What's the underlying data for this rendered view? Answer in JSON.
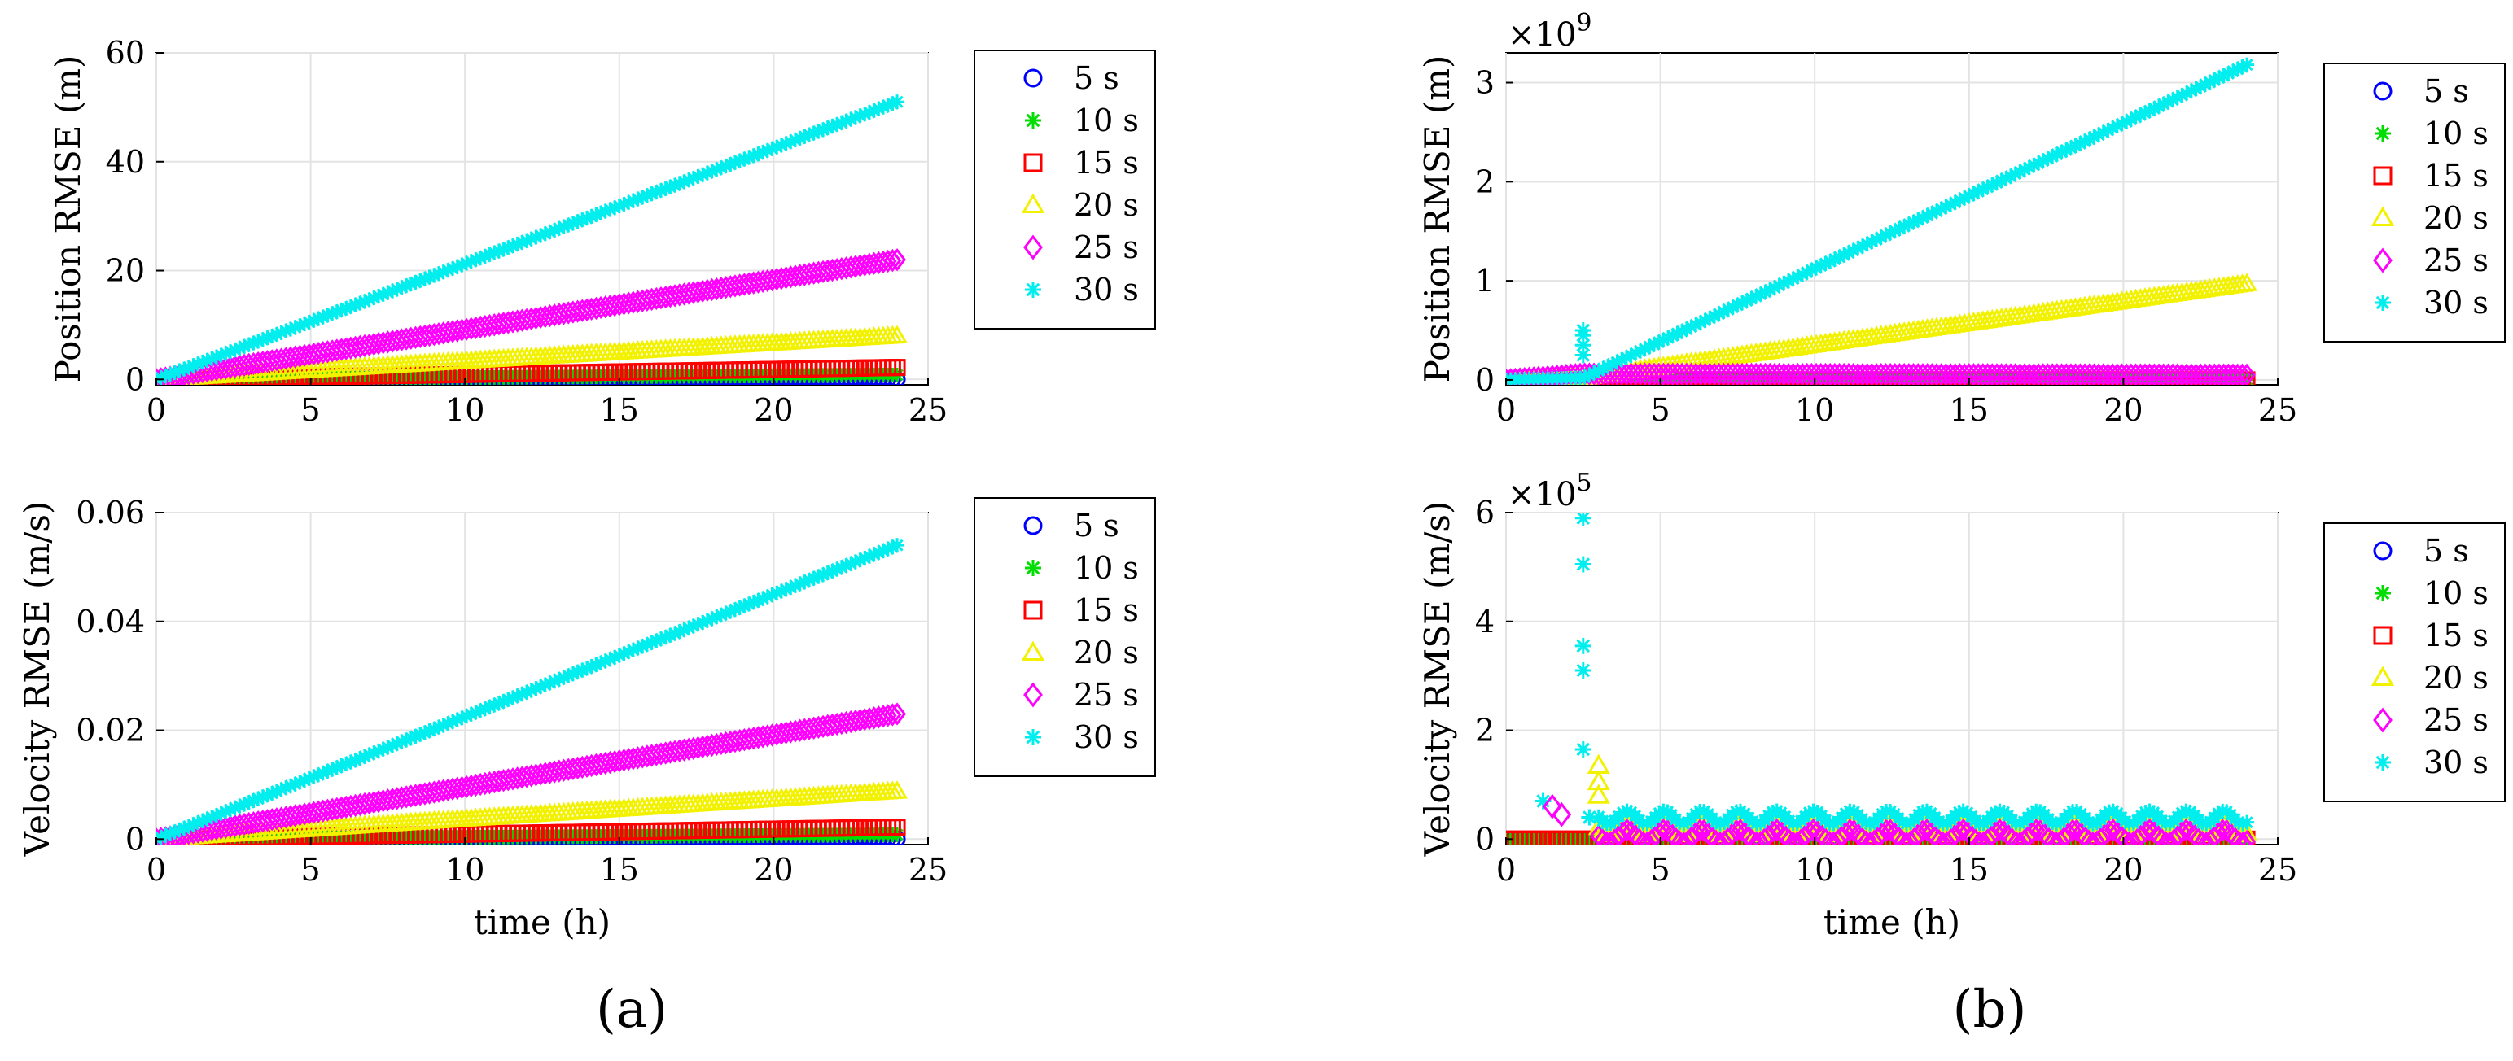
{
  "colors": {
    "s5": "#0000ff",
    "s10": "#00dd00",
    "s15": "#ff0000",
    "s20": "#f2f200",
    "s25": "#ff00ff",
    "s30": "#00eeee"
  },
  "legend": [
    "5 s",
    "10 s",
    "15 s",
    "20 s",
    "25 s",
    "30 s"
  ],
  "markers": [
    "circle",
    "star",
    "square",
    "triangle",
    "diamond",
    "star"
  ],
  "panel_labels": {
    "a": "(a)",
    "b": "(b)"
  },
  "chart_data": [
    {
      "id": "a_pos",
      "type": "scatter",
      "ylabel": "Position RMSE (m)",
      "xlabel": "",
      "xlim": [
        0,
        25
      ],
      "ylim": [
        -1,
        60
      ],
      "xticks": [
        "0",
        "5",
        "10",
        "15",
        "20",
        "25"
      ],
      "xtick_values": [
        0,
        5,
        10,
        15,
        20,
        25
      ],
      "yticks": [
        "0",
        "20",
        "40",
        "60"
      ],
      "ytick_values": [
        0,
        20,
        40,
        60
      ],
      "exponent": "",
      "series": [
        {
          "name": "5 s",
          "x": [
            0,
            24
          ],
          "y": [
            0,
            0
          ]
        },
        {
          "name": "10 s",
          "x": [
            0,
            24
          ],
          "y": [
            0,
            0.8
          ]
        },
        {
          "name": "15 s",
          "x": [
            0,
            24
          ],
          "y": [
            0,
            2.2
          ]
        },
        {
          "name": "20 s",
          "x": [
            0,
            24
          ],
          "y": [
            0,
            8
          ]
        },
        {
          "name": "25 s",
          "x": [
            0,
            24
          ],
          "y": [
            0,
            22
          ]
        },
        {
          "name": "30 s",
          "x": [
            0,
            24
          ],
          "y": [
            0,
            51
          ]
        }
      ]
    },
    {
      "id": "a_vel",
      "type": "scatter",
      "ylabel": "Velocity RMSE (m/s)",
      "xlabel": "time (h)",
      "xlim": [
        0,
        25
      ],
      "ylim": [
        -0.001,
        0.06
      ],
      "xticks": [
        "0",
        "5",
        "10",
        "15",
        "20",
        "25"
      ],
      "xtick_values": [
        0,
        5,
        10,
        15,
        20,
        25
      ],
      "yticks": [
        "0",
        "0.02",
        "0.04",
        "0.06"
      ],
      "ytick_values": [
        0,
        0.02,
        0.04,
        0.06
      ],
      "exponent": "",
      "series": [
        {
          "name": "5 s",
          "x": [
            0,
            24
          ],
          "y": [
            0,
            0
          ]
        },
        {
          "name": "10 s",
          "x": [
            0,
            24
          ],
          "y": [
            0,
            0.0008
          ]
        },
        {
          "name": "15 s",
          "x": [
            0,
            24
          ],
          "y": [
            0,
            0.0022
          ]
        },
        {
          "name": "20 s",
          "x": [
            0,
            24
          ],
          "y": [
            0,
            0.0088
          ]
        },
        {
          "name": "25 s",
          "x": [
            0,
            24
          ],
          "y": [
            0,
            0.023
          ]
        },
        {
          "name": "30 s",
          "x": [
            0,
            24
          ],
          "y": [
            0,
            0.054
          ]
        }
      ]
    },
    {
      "id": "b_pos",
      "type": "scatter",
      "ylabel": "Position RMSE (m)",
      "xlabel": "",
      "xlim": [
        0,
        25
      ],
      "ylim": [
        -0.05,
        3.3
      ],
      "xticks": [
        "0",
        "5",
        "10",
        "15",
        "20",
        "25"
      ],
      "xtick_values": [
        0,
        5,
        10,
        15,
        20,
        25
      ],
      "yticks": [
        "0",
        "1",
        "2",
        "3"
      ],
      "ytick_values": [
        0,
        1,
        2,
        3
      ],
      "exponent": "9",
      "series": [
        {
          "name": "5 s",
          "x": [
            0,
            24
          ],
          "y": [
            0,
            0
          ]
        },
        {
          "name": "10 s",
          "x": [
            0,
            24
          ],
          "y": [
            0,
            0
          ]
        },
        {
          "name": "15 s",
          "x": [
            0,
            24
          ],
          "y": [
            0,
            0
          ]
        },
        {
          "name": "20 s",
          "x": [
            0,
            2.5,
            24
          ],
          "y": [
            0,
            0.02,
            0.97
          ]
        },
        {
          "name": "25 s",
          "x": [
            0,
            2.5,
            24
          ],
          "y": [
            0,
            0.06,
            0.05
          ]
        },
        {
          "name": "30 s",
          "x": [
            0,
            2.5,
            24
          ],
          "y": [
            0,
            0.02,
            3.18
          ]
        }
      ],
      "scatter_points": [
        {
          "name": "30 s",
          "x": [
            2.5,
            2.5,
            2.5,
            2.5
          ],
          "y": [
            0.5,
            0.45,
            0.35,
            0.25
          ]
        }
      ]
    },
    {
      "id": "b_vel",
      "type": "scatter",
      "ylabel": "Velocity RMSE (m/s)",
      "xlabel": "time (h)",
      "xlim": [
        0,
        25
      ],
      "ylim": [
        -0.1,
        6
      ],
      "xticks": [
        "0",
        "5",
        "10",
        "15",
        "20",
        "25"
      ],
      "xtick_values": [
        0,
        5,
        10,
        15,
        20,
        25
      ],
      "yticks": [
        "0",
        "2",
        "4",
        "6"
      ],
      "ytick_values": [
        0,
        2,
        4,
        6
      ],
      "exponent": "5",
      "series": [
        {
          "name": "5 s",
          "x": [
            0,
            24
          ],
          "y": [
            0,
            0
          ]
        },
        {
          "name": "10 s",
          "x": [
            0,
            24
          ],
          "y": [
            0,
            0
          ]
        },
        {
          "name": "15 s",
          "x": [
            0,
            24
          ],
          "y": [
            0,
            0
          ]
        },
        {
          "name": "20 s",
          "x": [
            3,
            24
          ],
          "y": [
            0.2,
            0.2
          ]
        },
        {
          "name": "25 s",
          "x": [
            3,
            24
          ],
          "y": [
            0.05,
            0.05
          ]
        },
        {
          "name": "30 s",
          "x": [
            3,
            24
          ],
          "y": [
            0.4,
            0.4
          ]
        }
      ],
      "scatter_points": [
        {
          "name": "30 s",
          "x": [
            2.5,
            2.5,
            2.5,
            2.5,
            2.5,
            1.2,
            2.7
          ],
          "y": [
            5.9,
            5.05,
            3.55,
            3.1,
            1.65,
            0.7,
            0.4
          ]
        },
        {
          "name": "20 s",
          "x": [
            3.0,
            3.0,
            3.0
          ],
          "y": [
            1.35,
            1.05,
            0.8
          ]
        },
        {
          "name": "25 s",
          "x": [
            1.5,
            1.8
          ],
          "y": [
            0.6,
            0.45
          ]
        }
      ]
    }
  ]
}
